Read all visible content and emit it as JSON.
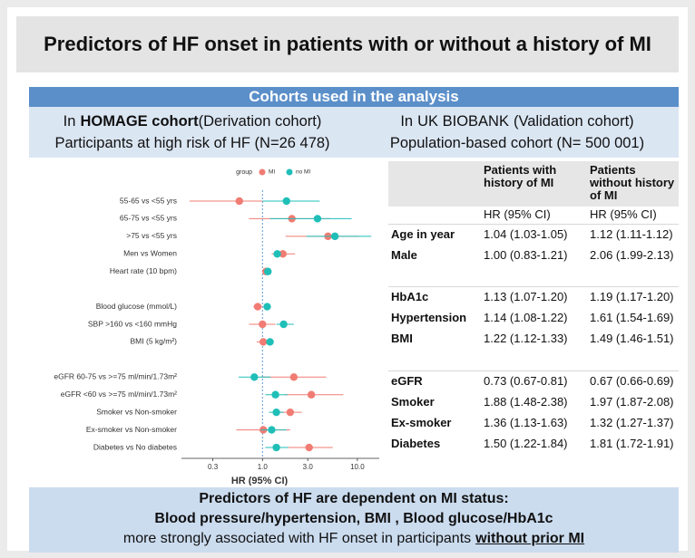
{
  "title": "Predictors of HF onset in patients with or without a history of MI",
  "cohorts": {
    "header": "Cohorts used in the analysis",
    "left": {
      "prefix": "In",
      "name": "HOMAGE cohort",
      "suffix": "(Derivation cohort)",
      "line2": "Participants at high risk of HF (N=26 478)"
    },
    "right": {
      "prefix": "In",
      "name": "UK BIOBANK",
      "suffix": "(Validation cohort)",
      "line2": "Population-based cohort (N= 500 001)"
    }
  },
  "chart_data": {
    "type": "forest",
    "xlabel": "HR (95% CI)",
    "legend_title": "group",
    "log_x": true,
    "xlim": [
      0.14,
      17
    ],
    "xticks": [
      0.3,
      {
        "value": 1,
        "label": "1.0"
      },
      {
        "value": 3,
        "label": "3.0"
      },
      {
        "value": 10,
        "label": "10.0"
      }
    ],
    "reference_line": {
      "value": 1,
      "color": "#5b9bd5"
    },
    "categories": [
      "55-65 vs <55 yrs",
      "65-75 vs <55 yrs",
      ">75 vs <55 yrs",
      "Men vs Women",
      "Heart rate (10 bpm)",
      null,
      "Blood glucose (mmol/L)",
      "SBP >160 vs <160 mmHg",
      "BMI (5 kg/m²)",
      null,
      "eGFR 60-75 vs >=75 ml/min/1.73m²",
      "eGFR <60 vs >=75 ml/min/1.73m²",
      "Smoker vs Non-smoker",
      "Ex-smoker vs Non-smoker",
      "Diabetes vs No diabetes"
    ],
    "series": [
      {
        "name": "MI",
        "color": "#f07c73",
        "values": [
          0.57,
          2.04,
          4.9,
          1.64,
          1.09,
          null,
          0.89,
          1.0,
          1.02,
          null,
          2.14,
          3.27,
          1.96,
          1.02,
          3.1
        ],
        "lower": [
          0.17,
          0.72,
          1.75,
          1.25,
          1.05,
          null,
          0.8,
          0.72,
          0.87,
          null,
          0.96,
          1.71,
          1.46,
          0.53,
          1.75
        ],
        "upper": [
          1.0,
          5.1,
          10.5,
          2.2,
          1.2,
          null,
          1.0,
          1.37,
          1.17,
          null,
          4.7,
          7.1,
          2.6,
          1.96,
          5.5
        ]
      },
      {
        "name": "no MI",
        "color": "#1fbfb8",
        "values": [
          1.79,
          3.8,
          5.8,
          1.43,
          1.14,
          null,
          1.12,
          1.67,
          1.2,
          null,
          0.82,
          1.37,
          1.4,
          1.25,
          1.4
        ],
        "lower": [
          1.0,
          1.2,
          2.9,
          1.3,
          1.09,
          null,
          1.07,
          1.4,
          1.12,
          null,
          0.56,
          1.07,
          1.17,
          0.96,
          1.07
        ],
        "upper": [
          4.0,
          8.7,
          14,
          1.56,
          1.22,
          null,
          1.17,
          2.14,
          1.28,
          null,
          1.22,
          1.83,
          1.67,
          1.79,
          1.87
        ]
      }
    ]
  },
  "table": {
    "columns": [
      "Patients with history of MI",
      "Patients without history of MI"
    ],
    "subheader": [
      "HR (95% CI)",
      "HR (95% CI)"
    ],
    "groups": [
      [
        [
          "Age in year",
          "1.04 (1.03-1.05)",
          "1.12 (1.11-1.12)"
        ],
        [
          "Male",
          "1.00 (0.83-1.21)",
          "2.06 (1.99-2.13)"
        ]
      ],
      [
        [
          "HbA1c",
          "1.13 (1.07-1.20)",
          "1.19 (1.17-1.20)"
        ],
        [
          "Hypertension",
          "1.14 (1.08-1.22)",
          "1.61 (1.54-1.69)"
        ],
        [
          "BMI",
          "1.22 (1.12-1.33)",
          "1.49 (1.46-1.51)"
        ]
      ],
      [
        [
          "eGFR",
          "0.73 (0.67-0.81)",
          "0.67 (0.66-0.69)"
        ],
        [
          "Smoker",
          "1.88 (1.48-2.38)",
          "1.97 (1.87-2.08)"
        ],
        [
          "Ex-smoker",
          "1.36 (1.13-1.63)",
          "1.32 (1.27-1.37)"
        ],
        [
          "Diabetes",
          "1.50 (1.22-1.84)",
          "1.81 (1.72-1.91)"
        ]
      ]
    ]
  },
  "conclusion": {
    "line1": "Predictors of HF are dependent on MI status:",
    "line2": "Blood pressure/hypertension, BMI , Blood glucose/HbA1c",
    "line3": "more strongly associated with HF onset in participants",
    "emphasis": "without prior MI"
  }
}
